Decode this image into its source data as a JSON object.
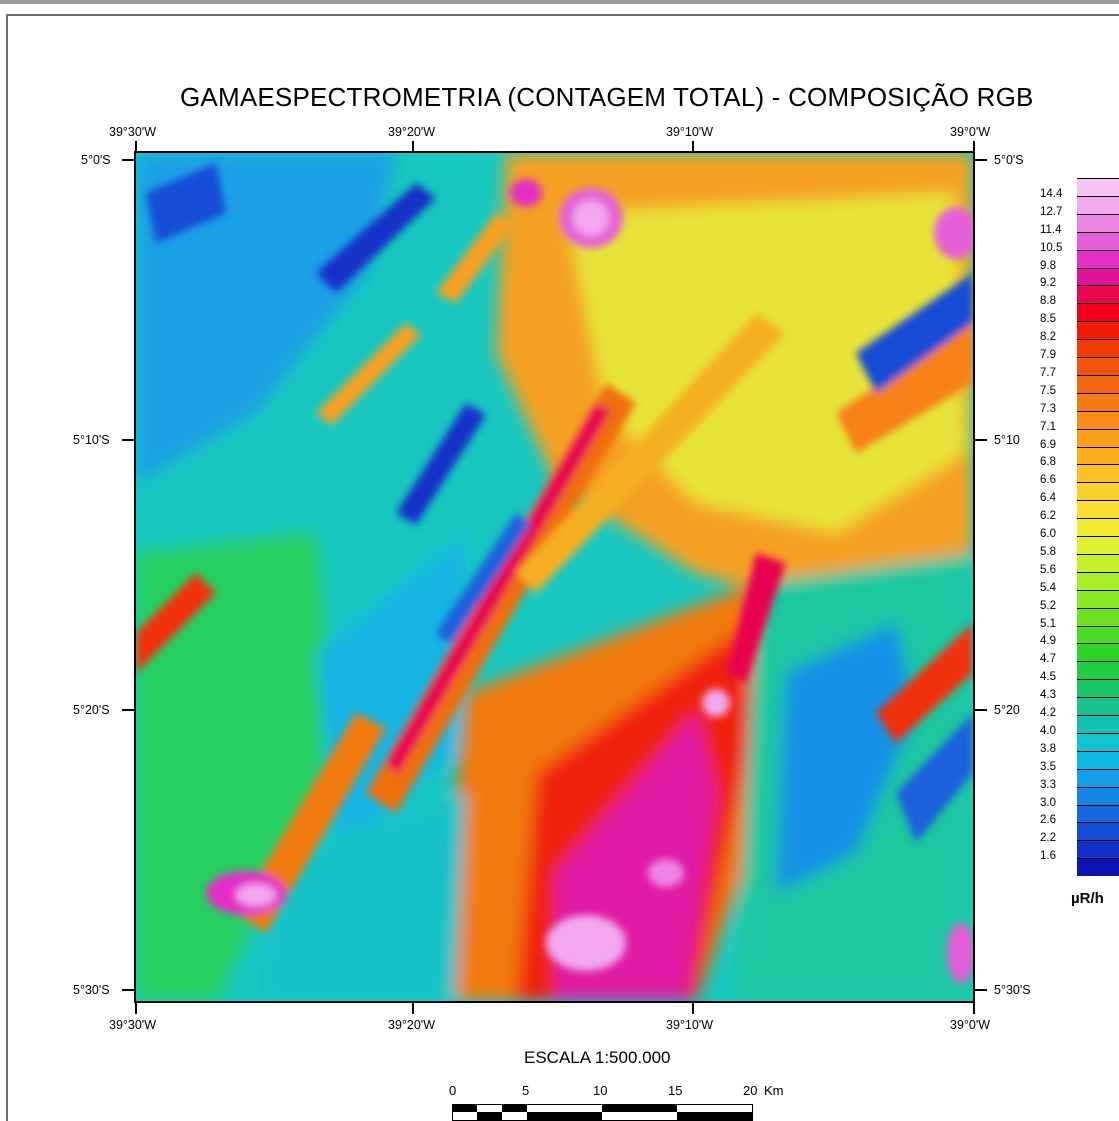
{
  "title": "GAMAESPECTROMETRIA (CONTAGEM TOTAL) - COMPOSIÇÃO RGB",
  "longitude_labels": [
    "39°30'W",
    "39°20'W",
    "39°10'W",
    "39°0'W"
  ],
  "latitude_labels_left": [
    "5°0'S",
    "5°10'S",
    "5°20'S",
    "5°30'S"
  ],
  "latitude_labels_right": [
    "5°0'S",
    "5°10",
    "5°20",
    "5°30'S"
  ],
  "legend": {
    "unit": "µR/h",
    "values": [
      "14.4",
      "12.7",
      "11.4",
      "10.5",
      "9.8",
      "9.2",
      "8.8",
      "8.5",
      "8.2",
      "7.9",
      "7.7",
      "7.5",
      "7.3",
      "7.1",
      "6.9",
      "6.8",
      "6.6",
      "6.4",
      "6.2",
      "6.0",
      "5.8",
      "5.6",
      "5.4",
      "5.2",
      "5.1",
      "4.9",
      "4.7",
      "4.5",
      "4.3",
      "4.2",
      "4.0",
      "3.8",
      "3.5",
      "3.3",
      "3.0",
      "2.6",
      "2.2",
      "1.6"
    ],
    "colors": [
      "#f2a7ef",
      "#ec86e6",
      "#e55fd8",
      "#e22fc6",
      "#e0129a",
      "#e8064f",
      "#f0001d",
      "#f21a06",
      "#f23a06",
      "#f3530a",
      "#f4660e",
      "#f57a12",
      "#f78c18",
      "#f89e1b",
      "#f9af1f",
      "#fac026",
      "#fad02c",
      "#f9e033",
      "#f3ea36",
      "#e1ef33",
      "#c5f02c",
      "#a8ed27",
      "#8ae824",
      "#6ee221",
      "#4cdc1f",
      "#2dd526",
      "#1fcd46",
      "#1ac66a",
      "#17c28f",
      "#15c1b2",
      "#12c3d1",
      "#11b9e6",
      "#129fe8",
      "#1686e6",
      "#1768df",
      "#154cd5",
      "#1230c8",
      "#0c14b5"
    ]
  },
  "scale": {
    "title": "ESCALA 1:500.000",
    "ticks": [
      "0",
      "5",
      "10",
      "15",
      "20"
    ],
    "unit": "Km"
  }
}
